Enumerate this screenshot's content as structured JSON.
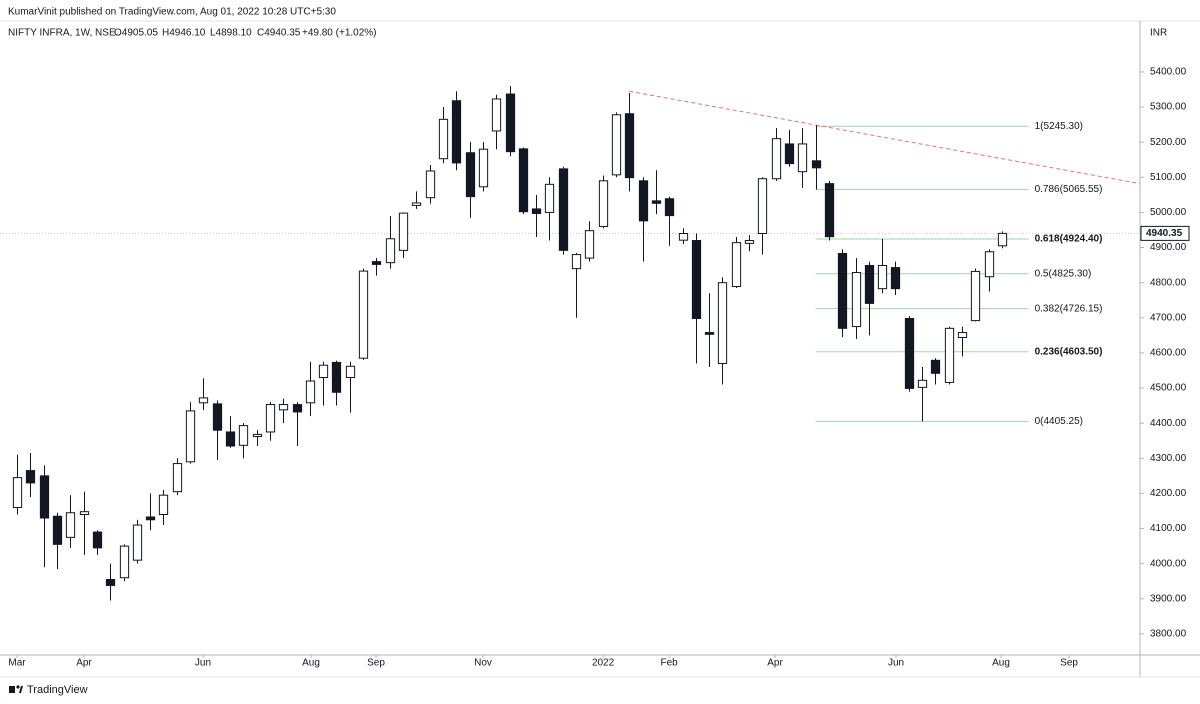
{
  "header": {
    "published": "KumarVinit published on TradingView.com, Aug 01, 2022 10:28 UTC+5:30"
  },
  "footer": {
    "brand": "TradingView"
  },
  "chart_data": {
    "type": "candlestick",
    "legend": {
      "symbol": "NIFTY INFRA, 1W, NSE",
      "open": "O4905.05",
      "high": "H4946.10",
      "low": "L4898.10",
      "close": "C4940.35",
      "change": "+49.80 (+1.02%)"
    },
    "currency": "INR",
    "up_color": "#ffffff",
    "down_color": "#131722",
    "outline_color": "#131722",
    "candles": [
      {
        "open": 4160,
        "high": 4310,
        "low": 4140,
        "close": 4245
      },
      {
        "open": 4265,
        "high": 4315,
        "low": 4190,
        "close": 4230
      },
      {
        "open": 4250,
        "high": 4280,
        "low": 3990,
        "close": 4130
      },
      {
        "open": 4135,
        "high": 4145,
        "low": 3985,
        "close": 4055
      },
      {
        "open": 4075,
        "high": 4195,
        "low": 4045,
        "close": 4145
      },
      {
        "open": 4140,
        "high": 4205,
        "low": 4025,
        "close": 4148
      },
      {
        "open": 4090,
        "high": 4095,
        "low": 4025,
        "close": 4045
      },
      {
        "open": 3955,
        "high": 4000,
        "low": 3895,
        "close": 3938
      },
      {
        "open": 3960,
        "high": 4055,
        "low": 3950,
        "close": 4050
      },
      {
        "open": 4010,
        "high": 4125,
        "low": 4000,
        "close": 4110
      },
      {
        "open": 4133,
        "high": 4200,
        "low": 4095,
        "close": 4125
      },
      {
        "open": 4140,
        "high": 4210,
        "low": 4110,
        "close": 4195
      },
      {
        "open": 4205,
        "high": 4300,
        "low": 4195,
        "close": 4285
      },
      {
        "open": 4290,
        "high": 4460,
        "low": 4285,
        "close": 4435
      },
      {
        "open": 4458,
        "high": 4528,
        "low": 4437,
        "close": 4472
      },
      {
        "open": 4455,
        "high": 4465,
        "low": 4295,
        "close": 4380
      },
      {
        "open": 4375,
        "high": 4420,
        "low": 4330,
        "close": 4335
      },
      {
        "open": 4337,
        "high": 4400,
        "low": 4300,
        "close": 4393
      },
      {
        "open": 4362,
        "high": 4380,
        "low": 4335,
        "close": 4368
      },
      {
        "open": 4375,
        "high": 4460,
        "low": 4350,
        "close": 4453
      },
      {
        "open": 4438,
        "high": 4470,
        "low": 4400,
        "close": 4453
      },
      {
        "open": 4453,
        "high": 4460,
        "low": 4335,
        "close": 4432
      },
      {
        "open": 4458,
        "high": 4575,
        "low": 4420,
        "close": 4520
      },
      {
        "open": 4530,
        "high": 4575,
        "low": 4450,
        "close": 4565
      },
      {
        "open": 4573,
        "high": 4578,
        "low": 4450,
        "close": 4488
      },
      {
        "open": 4530,
        "high": 4575,
        "low": 4430,
        "close": 4562
      },
      {
        "open": 4585,
        "high": 4840,
        "low": 4580,
        "close": 4833
      },
      {
        "open": 4860,
        "high": 4870,
        "low": 4820,
        "close": 4852
      },
      {
        "open": 4857,
        "high": 4990,
        "low": 4840,
        "close": 4925
      },
      {
        "open": 4892,
        "high": 5000,
        "low": 4870,
        "close": 4998
      },
      {
        "open": 5020,
        "high": 5060,
        "low": 5010,
        "close": 5027
      },
      {
        "open": 5042,
        "high": 5135,
        "low": 5025,
        "close": 5118
      },
      {
        "open": 5153,
        "high": 5300,
        "low": 5140,
        "close": 5265
      },
      {
        "open": 5318,
        "high": 5345,
        "low": 5120,
        "close": 5141
      },
      {
        "open": 5170,
        "high": 5200,
        "low": 4985,
        "close": 5045
      },
      {
        "open": 5073,
        "high": 5200,
        "low": 5060,
        "close": 5180
      },
      {
        "open": 5232,
        "high": 5335,
        "low": 5180,
        "close": 5323
      },
      {
        "open": 5337,
        "high": 5360,
        "low": 5160,
        "close": 5173
      },
      {
        "open": 5181,
        "high": 5185,
        "low": 4995,
        "close": 5002
      },
      {
        "open": 5010,
        "high": 5050,
        "low": 4930,
        "close": 4997
      },
      {
        "open": 5000,
        "high": 5100,
        "low": 4920,
        "close": 5080
      },
      {
        "open": 5124,
        "high": 5130,
        "low": 4880,
        "close": 4892
      },
      {
        "open": 4840,
        "high": 4885,
        "low": 4700,
        "close": 4880
      },
      {
        "open": 4870,
        "high": 4975,
        "low": 4860,
        "close": 4948
      },
      {
        "open": 4960,
        "high": 5105,
        "low": 4955,
        "close": 5090
      },
      {
        "open": 5107,
        "high": 5285,
        "low": 5100,
        "close": 5278
      },
      {
        "open": 5281,
        "high": 5340,
        "low": 5060,
        "close": 5099
      },
      {
        "open": 5090,
        "high": 5100,
        "low": 4860,
        "close": 4976
      },
      {
        "open": 5033,
        "high": 5120,
        "low": 4995,
        "close": 5026
      },
      {
        "open": 5039,
        "high": 5045,
        "low": 4905,
        "close": 4991
      },
      {
        "open": 4921,
        "high": 4955,
        "low": 4910,
        "close": 4940
      },
      {
        "open": 4920,
        "high": 4940,
        "low": 4570,
        "close": 4698
      },
      {
        "open": 4658,
        "high": 4770,
        "low": 4560,
        "close": 4653
      },
      {
        "open": 4570,
        "high": 4815,
        "low": 4510,
        "close": 4800
      },
      {
        "open": 4789,
        "high": 4930,
        "low": 4785,
        "close": 4914
      },
      {
        "open": 4912,
        "high": 4935,
        "low": 4890,
        "close": 4920
      },
      {
        "open": 4940,
        "high": 5100,
        "low": 4880,
        "close": 5096
      },
      {
        "open": 5096,
        "high": 5240,
        "low": 5090,
        "close": 5210
      },
      {
        "open": 5195,
        "high": 5235,
        "low": 5130,
        "close": 5139
      },
      {
        "open": 5116,
        "high": 5240,
        "low": 5070,
        "close": 5195
      },
      {
        "open": 5147,
        "high": 5248,
        "low": 5065,
        "close": 5127
      },
      {
        "open": 5082,
        "high": 5090,
        "low": 4920,
        "close": 4931
      },
      {
        "open": 4883,
        "high": 4895,
        "low": 4645,
        "close": 4670
      },
      {
        "open": 4675,
        "high": 4870,
        "low": 4640,
        "close": 4829
      },
      {
        "open": 4849,
        "high": 4860,
        "low": 4650,
        "close": 4741
      },
      {
        "open": 4783,
        "high": 4925,
        "low": 4770,
        "close": 4849
      },
      {
        "open": 4843,
        "high": 4860,
        "low": 4765,
        "close": 4783
      },
      {
        "open": 4698,
        "high": 4705,
        "low": 4490,
        "close": 4499
      },
      {
        "open": 4502,
        "high": 4560,
        "low": 4405,
        "close": 4522
      },
      {
        "open": 4579,
        "high": 4585,
        "low": 4510,
        "close": 4542
      },
      {
        "open": 4516,
        "high": 4675,
        "low": 4510,
        "close": 4670
      },
      {
        "open": 4644,
        "high": 4675,
        "low": 4590,
        "close": 4658
      },
      {
        "open": 4692,
        "high": 4840,
        "low": 4690,
        "close": 4832
      },
      {
        "open": 4817,
        "high": 4895,
        "low": 4775,
        "close": 4888
      },
      {
        "open": 4905.05,
        "high": 4946.1,
        "low": 4898.1,
        "close": 4940.35
      }
    ],
    "xlim": [
      -1.28,
      84.37
    ],
    "xticks": [
      {
        "value": 0,
        "label": "Mar"
      },
      {
        "value": 5.03,
        "label": "Apr"
      },
      {
        "value": 13.97,
        "label": "Jun"
      },
      {
        "value": 22.09,
        "label": "Aug"
      },
      {
        "value": 26.97,
        "label": "Sep"
      },
      {
        "value": 35.01,
        "label": "Nov"
      },
      {
        "value": 44.03,
        "label": "2022"
      },
      {
        "value": 48.99,
        "label": "Feb"
      },
      {
        "value": 56.95,
        "label": "Apr"
      },
      {
        "value": 66.04,
        "label": "Jun"
      },
      {
        "value": 73.93,
        "label": "Aug"
      },
      {
        "value": 79.04,
        "label": "Sep"
      }
    ],
    "ylim": [
      3740,
      5545
    ],
    "yticks": [
      {
        "value": 3800,
        "label": "3800.00"
      },
      {
        "value": 3900,
        "label": "3900.00"
      },
      {
        "value": 4000,
        "label": "4000.00"
      },
      {
        "value": 4100,
        "label": "4100.00"
      },
      {
        "value": 4200,
        "label": "4200.00"
      },
      {
        "value": 4300,
        "label": "4300.00"
      },
      {
        "value": 4400,
        "label": "4400.00"
      },
      {
        "value": 4500,
        "label": "4500.00"
      },
      {
        "value": 4600,
        "label": "4600.00"
      },
      {
        "value": 4700,
        "label": "4700.00"
      },
      {
        "value": 4800,
        "label": "4800.00"
      },
      {
        "value": 4900,
        "label": "4900.00"
      },
      {
        "value": 5000,
        "label": "5000.00"
      },
      {
        "value": 5100,
        "label": "5100.00"
      },
      {
        "value": 5200,
        "label": "5200.00"
      },
      {
        "value": 5300,
        "label": "5300.00"
      },
      {
        "value": 5400,
        "label": "5400.00"
      }
    ],
    "last_price": 4940.35,
    "fibonacci": {
      "x": [
        60,
        76
      ],
      "color": "#a5d6a7",
      "label_color": "#81c784",
      "bold_color": "#4caf50",
      "levels": [
        {
          "value": 5245.3,
          "label": "1(5245.30)"
        },
        {
          "value": 5065.55,
          "label": "0.786(5065.55)"
        },
        {
          "value": 4924.4,
          "label": "0.618(4924.40)",
          "bold": true
        },
        {
          "value": 4825.3,
          "label": "0.5(4825.30)"
        },
        {
          "value": 4726.15,
          "label": "0.382(4726.15)"
        },
        {
          "value": 4603.5,
          "label": "0.236(4603.50)",
          "bold": true
        },
        {
          "value": 4405.25,
          "label": "0(4405.25)"
        }
      ]
    },
    "trendline": {
      "x": [
        46,
        84.37
      ],
      "y": [
        5345,
        5082
      ],
      "color": "#e57373"
    }
  }
}
